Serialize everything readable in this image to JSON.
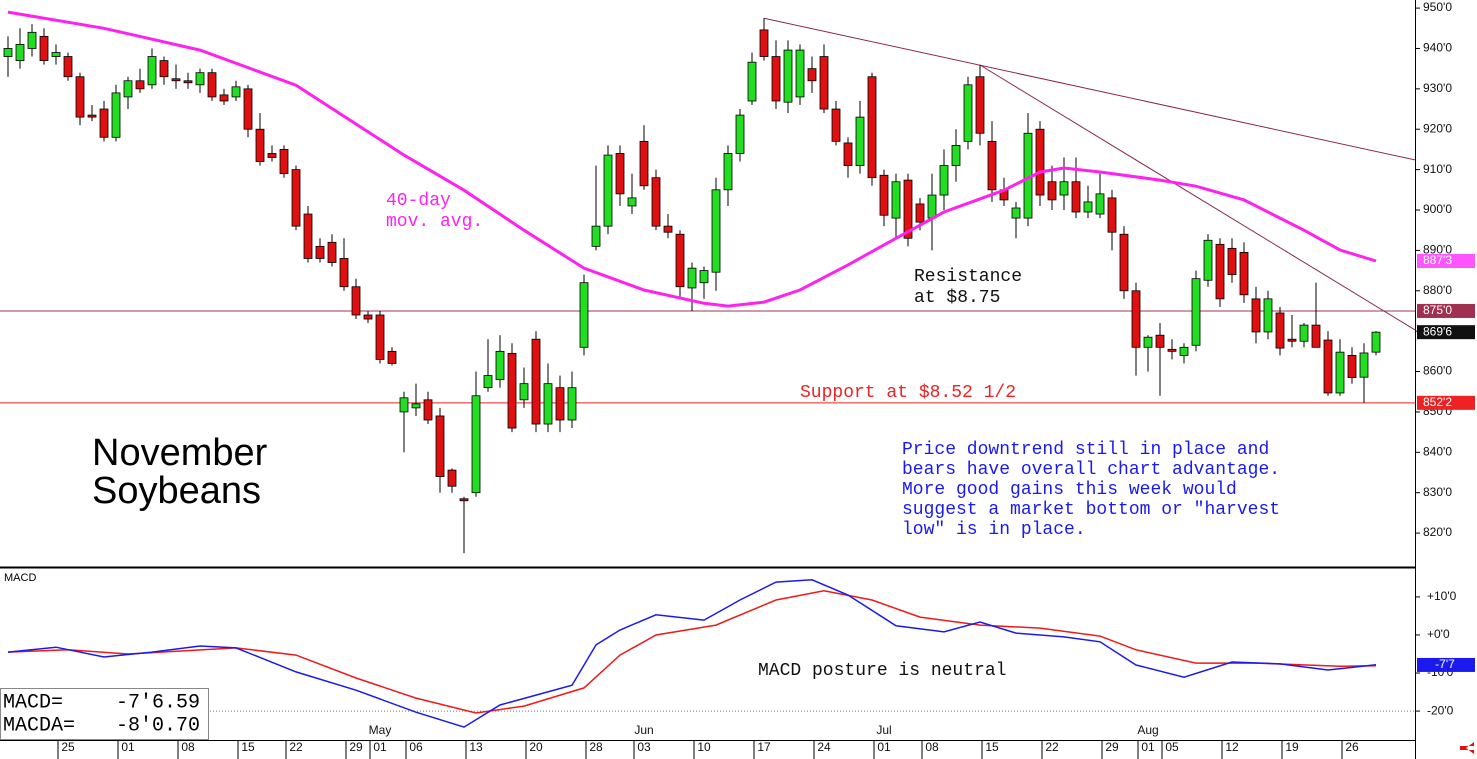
{
  "chart_data": {
    "type": "candlestick",
    "title_lines": [
      "November",
      "Soybeans"
    ],
    "categories": [
      null,
      null,
      null,
      null,
      null,
      "25",
      null,
      null,
      null,
      null,
      "01",
      null,
      null,
      null,
      null,
      "08",
      null,
      null,
      null,
      null,
      "15",
      null,
      null,
      null,
      "22",
      null,
      null,
      null,
      null,
      "29",
      null,
      "01",
      null,
      null,
      "06",
      null,
      null,
      null,
      null,
      "13",
      null,
      null,
      null,
      null,
      "20",
      null,
      null,
      null,
      null,
      "28",
      null,
      null,
      null,
      "03",
      null,
      null,
      null,
      null,
      "10",
      null,
      null,
      null,
      null,
      "17",
      null,
      null,
      null,
      null,
      "24",
      null,
      null,
      null,
      null,
      "01",
      null,
      null,
      null,
      "08",
      null,
      null,
      null,
      null,
      "15",
      null,
      null,
      null,
      null,
      "22",
      null,
      null,
      null,
      null,
      "29",
      null,
      null,
      "01",
      null,
      "05",
      null,
      null,
      null,
      null,
      "12",
      null,
      null,
      null,
      null,
      "19",
      null,
      null,
      null,
      null,
      "26",
      null,
      null
    ],
    "months": [
      null,
      null,
      null,
      null,
      null,
      null,
      null,
      null,
      null,
      null,
      null,
      null,
      null,
      null,
      null,
      null,
      null,
      null,
      null,
      null,
      null,
      null,
      null,
      null,
      null,
      null,
      null,
      null,
      null,
      null,
      null,
      "May",
      null,
      null,
      null,
      null,
      null,
      null,
      null,
      null,
      null,
      null,
      null,
      null,
      null,
      null,
      null,
      null,
      null,
      null,
      null,
      null,
      null,
      "Jun",
      null,
      null,
      null,
      null,
      null,
      null,
      null,
      null,
      null,
      null,
      null,
      null,
      null,
      null,
      null,
      null,
      null,
      null,
      null,
      "Jul",
      null,
      null,
      null,
      null,
      null,
      null,
      null,
      null,
      null,
      null,
      null,
      null,
      null,
      null,
      null,
      null,
      null,
      null,
      null,
      null,
      null,
      "Aug",
      null,
      null,
      null,
      null,
      null,
      null,
      null,
      null,
      null,
      null,
      null,
      null,
      null,
      null,
      null,
      null,
      null,
      null,
      null
    ],
    "open": [
      938,
      937,
      940,
      943,
      938,
      938,
      933,
      923.5,
      925,
      918,
      928,
      932,
      931,
      937,
      932.5,
      932,
      931,
      934,
      928.5,
      928,
      930,
      920,
      914,
      915,
      910,
      899,
      891,
      892,
      888,
      881,
      874,
      874,
      865,
      850,
      851,
      853,
      849,
      835.6,
      828.5,
      830,
      856,
      858,
      864.5,
      853,
      868,
      847,
      856,
      848,
      866,
      891,
      896,
      914,
      901,
      917,
      908,
      896,
      894,
      880.7,
      882,
      884.6,
      905,
      914,
      927,
      944.6,
      938,
      926.7,
      928,
      935,
      938,
      925,
      916.6,
      911,
      933,
      908.6,
      898,
      907.4,
      901.5,
      898,
      903.7,
      911,
      917,
      933,
      917,
      905,
      898,
      898,
      920,
      907,
      903.7,
      907,
      899.5,
      899,
      903,
      894,
      880,
      866,
      869,
      865.5,
      864,
      866.5,
      882.6,
      891.5,
      890.5,
      889.5,
      878,
      869.8,
      874.5,
      868,
      867.5,
      871.5,
      867.8,
      854.7,
      864,
      858.6,
      864.8
    ],
    "high": [
      943,
      945,
      946,
      945,
      941,
      939,
      934,
      926,
      927,
      931,
      933,
      935,
      940,
      938,
      936,
      934,
      935,
      935,
      930,
      932,
      931,
      924,
      916,
      916,
      911,
      901,
      893,
      894,
      893,
      883,
      875,
      875,
      866,
      855,
      857,
      855,
      851,
      836,
      829,
      860,
      868,
      869,
      867,
      861,
      870,
      862,
      859,
      860,
      884,
      911,
      916,
      916,
      909,
      921,
      910,
      899,
      895,
      887,
      886,
      908,
      916,
      925,
      939,
      947.5,
      942,
      942,
      941,
      938,
      941,
      927,
      918,
      927,
      934,
      910,
      909,
      909,
      903,
      909,
      915,
      920,
      933,
      935.9,
      922,
      908,
      902,
      924,
      922,
      911,
      913,
      913,
      906,
      909,
      905,
      896,
      882,
      869,
      872,
      868,
      867,
      885,
      894,
      893,
      893,
      892,
      881,
      880,
      876,
      874,
      872,
      882,
      870,
      868,
      866,
      867,
      870
    ],
    "low": [
      933,
      935,
      938,
      936,
      936,
      932,
      921,
      922,
      917,
      917,
      925,
      929,
      930,
      931,
      930,
      930,
      929,
      927,
      926,
      927,
      918,
      911,
      912,
      908,
      895,
      887,
      887,
      886,
      880,
      873,
      872,
      862,
      861.5,
      840,
      849,
      847,
      830,
      830,
      815,
      829,
      855,
      856,
      845,
      851,
      845,
      845,
      845,
      846,
      864,
      890,
      894,
      901,
      899,
      905,
      895,
      893,
      878,
      875,
      878,
      880,
      901,
      912,
      926,
      937,
      925,
      924,
      926,
      929,
      924,
      916,
      908,
      909,
      906,
      896,
      893,
      891,
      895,
      890,
      900,
      907,
      915,
      916,
      902,
      901,
      893,
      896,
      901,
      900,
      900,
      898,
      898,
      898,
      890,
      878,
      859,
      860,
      854,
      863,
      862,
      865,
      881,
      876,
      882,
      877,
      867,
      868,
      864,
      866,
      866,
      866,
      854,
      854,
      857,
      852.25,
      864
    ],
    "close": [
      940,
      941,
      944,
      937,
      939,
      933,
      923,
      923,
      918,
      929,
      932,
      930,
      938,
      933,
      932,
      931.5,
      934,
      928,
      927,
      930.5,
      920,
      912,
      913,
      909,
      896,
      888,
      888,
      887,
      881,
      874,
      873,
      863,
      862,
      853.5,
      852,
      848,
      834,
      831.6,
      828,
      854,
      859,
      865,
      846,
      857,
      847,
      857,
      848,
      856,
      882,
      896,
      913.6,
      904,
      903,
      906,
      896,
      894.5,
      881,
      885.6,
      885,
      905,
      914,
      923.5,
      936.6,
      938,
      927,
      939.6,
      939.6,
      932,
      925,
      917,
      911,
      923,
      908,
      898.7,
      907,
      893,
      897,
      903.7,
      911,
      916,
      931,
      919,
      905,
      902.5,
      900.5,
      919,
      903.7,
      902.5,
      907,
      899.5,
      902,
      904,
      894.5,
      880,
      866,
      868.5,
      866,
      865,
      866,
      883,
      892.5,
      878,
      884,
      879,
      869.8,
      878,
      865.8,
      867.5,
      871.5,
      866,
      854.7,
      864.8,
      858.5,
      864.6,
      869.75
    ],
    "colors": {
      "up": "#22dd22",
      "down": "#e01010"
    },
    "xlim": [
      -0.667,
      117.25
    ],
    "ylim": [
      811.6,
      952
    ],
    "yticks": [
      {
        "value": 820,
        "label": "820'0"
      },
      {
        "value": 830,
        "label": "830'0"
      },
      {
        "value": 840,
        "label": "840'0"
      },
      {
        "value": 850,
        "label": "850'0"
      },
      {
        "value": 860,
        "label": "860'0"
      },
      {
        "value": 870,
        "label": "870'0"
      },
      {
        "value": 880,
        "label": "880'0"
      },
      {
        "value": 890,
        "label": "890'0"
      },
      {
        "value": 900,
        "label": "900'0"
      },
      {
        "value": 910,
        "label": "910'0"
      },
      {
        "value": 920,
        "label": "920'0"
      },
      {
        "value": 930,
        "label": "930'0"
      },
      {
        "value": 940,
        "label": "940'0"
      },
      {
        "value": 950,
        "label": "950'0"
      }
    ],
    "moving_average": {
      "label_lines": [
        "40-day",
        "mov. avg."
      ],
      "color": "#ff22ee",
      "x": [
        0,
        8,
        16,
        24,
        33,
        38,
        43,
        48,
        53,
        58,
        60,
        63,
        66,
        70,
        74,
        78,
        83,
        86,
        88,
        91,
        96,
        99,
        103,
        108,
        111,
        114
      ],
      "values": [
        949,
        945,
        939.6,
        930.9,
        913.6,
        904.9,
        895,
        885.6,
        880.2,
        876.9,
        876.2,
        877.2,
        880.2,
        886.4,
        893,
        899.5,
        904.9,
        909.4,
        910.4,
        909.4,
        907.4,
        905.9,
        902.5,
        895,
        890.1,
        887.375
      ]
    },
    "trendlines": [
      {
        "color": "#8b2a4a",
        "x": [
          63,
          117.25
        ],
        "values": [
          947.5,
          912.4
        ]
      },
      {
        "color": "#8b2a4a",
        "x": [
          81,
          117.25
        ],
        "values": [
          935.9,
          870.3
        ]
      }
    ],
    "price_tags": [
      {
        "value": 887.375,
        "label": "887'3",
        "color": "#ff55ff",
        "line": false
      },
      {
        "value": 875,
        "label": "875'0",
        "color": "#a03050",
        "line": true
      },
      {
        "value": 869.75,
        "label": "869'6",
        "color": "#111111",
        "line": false
      },
      {
        "value": 852.25,
        "label": "852'2",
        "color": "#ee2222",
        "line": true
      }
    ],
    "annotations": {
      "resistance": [
        "Resistance",
        "at $8.75"
      ],
      "support": "Support at $8.52 1/2",
      "comment": [
        "Price downtrend still in place and",
        "bears have overall chart advantage.",
        "More good gains this week would",
        "suggest a market bottom or \"harvest",
        "low\" is in place."
      ]
    },
    "macd": {
      "title": "MACD",
      "ylim": [
        -27.6,
        17.6
      ],
      "yticks": [
        {
          "value": 10,
          "label": "+10'0"
        },
        {
          "value": 0,
          "label": "+0'0"
        },
        {
          "value": -10,
          "label": "-10'0"
        },
        {
          "value": -20,
          "label": "-20'0"
        }
      ],
      "guide": -20,
      "series": [
        {
          "name": "MACD",
          "color": "#1a1aee",
          "x": [
            0,
            4,
            8,
            12,
            16,
            19,
            24,
            29,
            34,
            38,
            41,
            44,
            47,
            49,
            51,
            54,
            58,
            61,
            64,
            67,
            70,
            74,
            78,
            81,
            84,
            88,
            91,
            94,
            98,
            102,
            106,
            110,
            114
          ],
          "values": [
            -4.5,
            -3.2,
            -5.8,
            -4.5,
            -2.9,
            -3.4,
            -9.7,
            -14.5,
            -20.3,
            -24.2,
            -18.4,
            -15.8,
            -13.2,
            -2.6,
            1.3,
            5.3,
            3.9,
            9.2,
            13.9,
            14.5,
            10.5,
            2.4,
            0.8,
            3.4,
            0.5,
            -0.5,
            -1.8,
            -7.9,
            -11.1,
            -7.1,
            -7.6,
            -9.2,
            -7.8
          ]
        },
        {
          "name": "MACDA",
          "color": "#ee1a1a",
          "x": [
            0,
            5,
            10,
            19,
            24,
            29,
            34,
            39,
            43,
            48,
            51,
            54,
            59,
            64,
            68,
            72,
            76,
            81,
            86,
            91,
            94,
            99,
            104,
            111,
            114
          ],
          "values": [
            -4.5,
            -3.9,
            -5,
            -3.4,
            -5.3,
            -11.3,
            -16.6,
            -20.5,
            -18.7,
            -13.9,
            -5.3,
            0,
            2.6,
            9.2,
            11.6,
            9.2,
            4.7,
            2.6,
            1.8,
            -0.3,
            -3.9,
            -7.4,
            -7.4,
            -8.2,
            -8.1
          ]
        }
      ],
      "readout": [
        [
          "MACD=",
          "-7'6.59"
        ],
        [
          "MACDA=",
          "-8'0.70"
        ]
      ],
      "tag": {
        "value": -7.875,
        "label": "-7'7",
        "color": "#1a1aee"
      },
      "comment": "MACD posture is neutral"
    }
  }
}
